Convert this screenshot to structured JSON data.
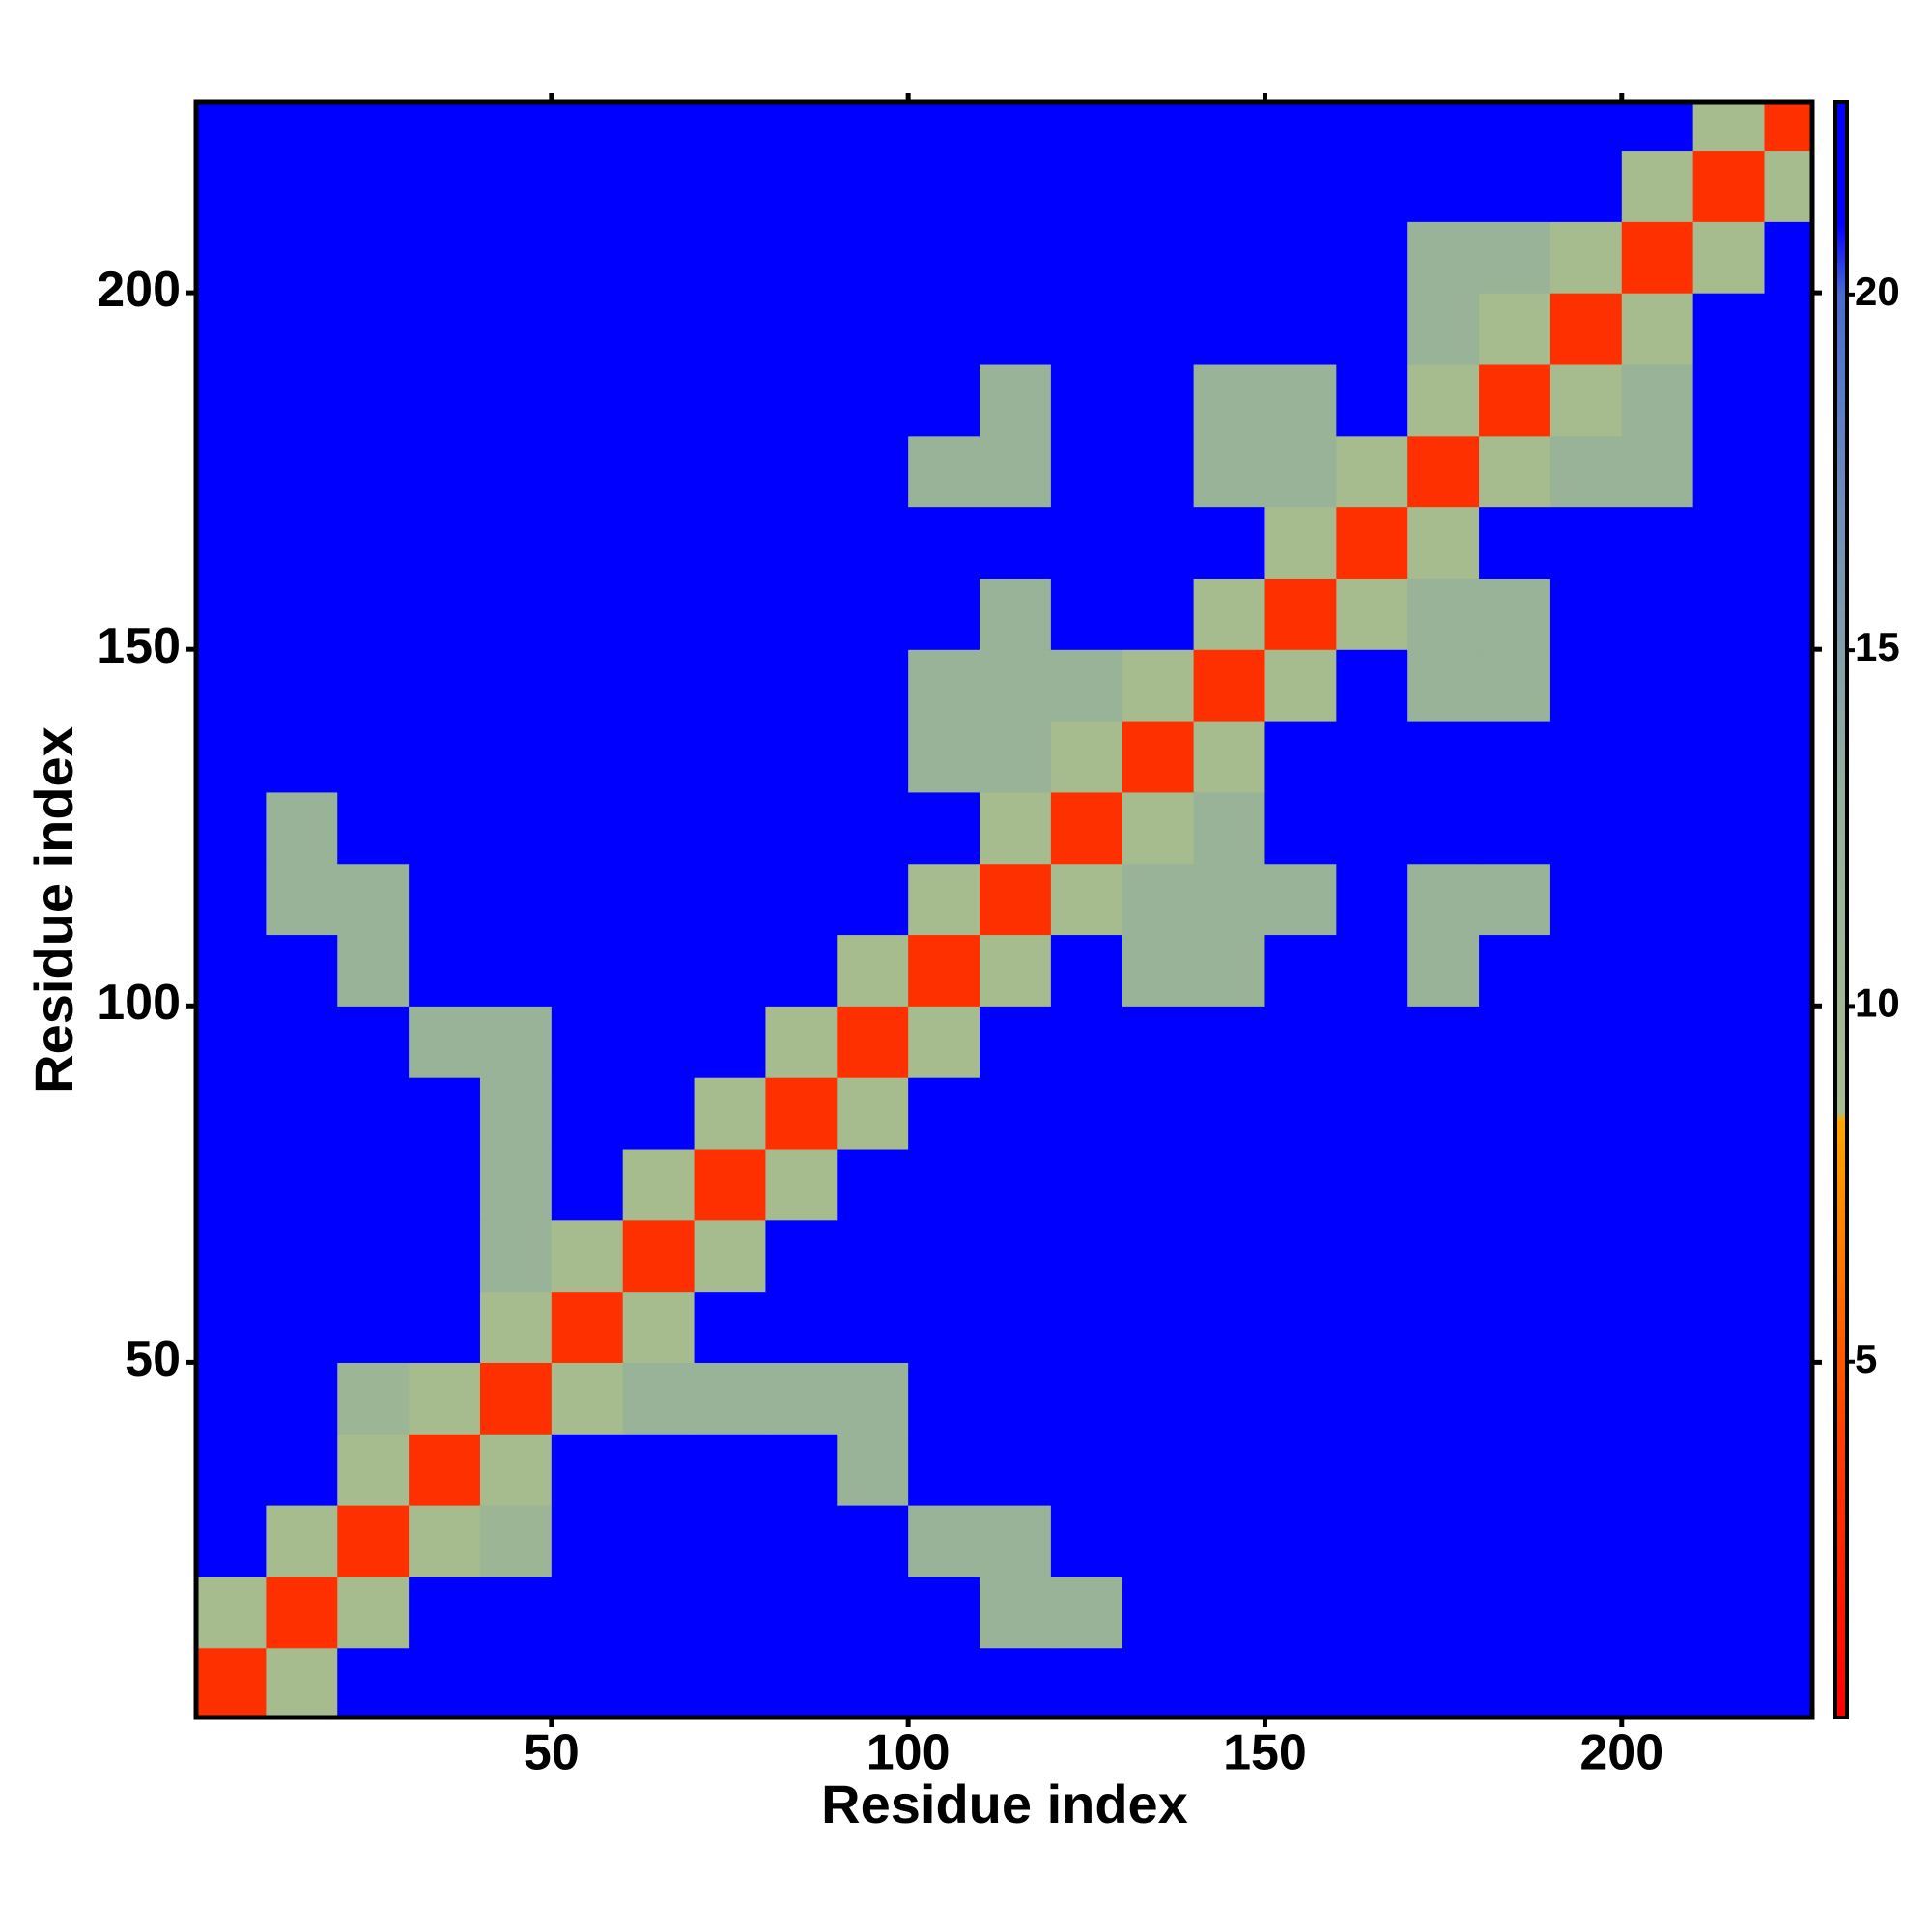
{
  "chart_data": {
    "type": "heatmap",
    "xlabel": "Residue index",
    "ylabel": "Residue index",
    "x": [
      5,
      15,
      25,
      35,
      45,
      55,
      65,
      75,
      85,
      95,
      105,
      115,
      125,
      135,
      145,
      155,
      165,
      175,
      185,
      195,
      205,
      215,
      225
    ],
    "y": [
      5,
      15,
      25,
      35,
      45,
      55,
      65,
      75,
      85,
      95,
      105,
      115,
      125,
      135,
      145,
      155,
      165,
      175,
      185,
      195,
      205,
      215,
      225
    ],
    "z": [
      [
        3,
        9,
        21,
        21,
        21,
        21,
        21,
        21,
        21,
        21,
        21,
        21,
        21,
        21,
        21,
        21,
        21,
        21,
        21,
        21,
        21,
        21,
        21
      ],
      [
        9,
        3,
        9,
        21,
        21,
        21,
        21,
        21,
        21,
        21,
        21,
        12,
        12,
        21,
        21,
        21,
        21,
        21,
        21,
        21,
        21,
        21,
        21
      ],
      [
        21,
        9,
        3,
        9,
        11,
        21,
        21,
        21,
        21,
        21,
        12,
        12,
        21,
        21,
        21,
        21,
        21,
        21,
        21,
        21,
        21,
        21,
        21
      ],
      [
        21,
        21,
        9,
        3,
        9,
        21,
        21,
        21,
        21,
        12,
        21,
        21,
        21,
        21,
        21,
        21,
        21,
        21,
        21,
        21,
        21,
        21,
        21
      ],
      [
        21,
        21,
        11,
        9,
        3,
        9,
        12,
        12,
        12,
        12,
        21,
        21,
        21,
        21,
        21,
        21,
        21,
        21,
        21,
        21,
        21,
        21,
        21
      ],
      [
        21,
        21,
        21,
        21,
        9,
        3,
        9,
        21,
        21,
        21,
        21,
        21,
        21,
        21,
        21,
        21,
        21,
        21,
        21,
        21,
        21,
        21,
        21
      ],
      [
        21,
        21,
        21,
        21,
        12,
        9,
        3,
        9,
        21,
        21,
        21,
        21,
        21,
        21,
        21,
        21,
        21,
        21,
        21,
        21,
        21,
        21,
        21
      ],
      [
        21,
        21,
        21,
        21,
        12,
        21,
        9,
        3,
        9,
        21,
        21,
        21,
        21,
        21,
        21,
        21,
        21,
        21,
        21,
        21,
        21,
        21,
        21
      ],
      [
        21,
        21,
        21,
        21,
        12,
        21,
        21,
        9,
        3,
        9,
        21,
        21,
        21,
        21,
        21,
        21,
        21,
        21,
        21,
        21,
        21,
        21,
        21
      ],
      [
        21,
        21,
        21,
        12,
        12,
        21,
        21,
        21,
        9,
        3,
        9,
        21,
        21,
        21,
        21,
        21,
        21,
        21,
        21,
        21,
        21,
        21,
        21
      ],
      [
        21,
        21,
        12,
        21,
        21,
        21,
        21,
        21,
        21,
        9,
        3,
        9,
        21,
        12,
        12,
        21,
        21,
        12,
        21,
        21,
        21,
        21,
        21
      ],
      [
        21,
        12,
        12,
        21,
        21,
        21,
        21,
        21,
        21,
        21,
        9,
        3,
        9,
        12,
        12,
        12,
        21,
        12,
        12,
        21,
        21,
        21,
        21
      ],
      [
        21,
        12,
        21,
        21,
        21,
        21,
        21,
        21,
        21,
        21,
        21,
        9,
        3,
        9,
        12,
        21,
        21,
        21,
        21,
        21,
        21,
        21,
        21
      ],
      [
        21,
        21,
        21,
        21,
        21,
        21,
        21,
        21,
        21,
        21,
        12,
        12,
        9,
        3,
        9,
        21,
        21,
        21,
        21,
        21,
        21,
        21,
        21
      ],
      [
        21,
        21,
        21,
        21,
        21,
        21,
        21,
        21,
        21,
        21,
        12,
        12,
        12,
        9,
        3,
        9,
        21,
        12,
        12,
        21,
        21,
        21,
        21
      ],
      [
        21,
        21,
        21,
        21,
        21,
        21,
        21,
        21,
        21,
        21,
        21,
        12,
        21,
        21,
        9,
        3,
        9,
        12,
        12,
        21,
        21,
        21,
        21
      ],
      [
        21,
        21,
        21,
        21,
        21,
        21,
        21,
        21,
        21,
        21,
        21,
        21,
        21,
        21,
        21,
        9,
        3,
        9,
        21,
        21,
        21,
        21,
        21
      ],
      [
        21,
        21,
        21,
        21,
        21,
        21,
        21,
        21,
        21,
        21,
        12,
        12,
        21,
        21,
        12,
        12,
        9,
        3,
        9,
        12,
        12,
        21,
        21
      ],
      [
        21,
        21,
        21,
        21,
        21,
        21,
        21,
        21,
        21,
        21,
        21,
        12,
        21,
        21,
        12,
        12,
        21,
        9,
        3,
        9,
        12,
        21,
        21
      ],
      [
        21,
        21,
        21,
        21,
        21,
        21,
        21,
        21,
        21,
        21,
        21,
        21,
        21,
        21,
        21,
        21,
        21,
        12,
        9,
        3,
        9,
        21,
        21
      ],
      [
        21,
        21,
        21,
        21,
        21,
        21,
        21,
        21,
        21,
        21,
        21,
        21,
        21,
        21,
        21,
        21,
        21,
        12,
        12,
        9,
        3,
        9,
        21
      ],
      [
        21,
        21,
        21,
        21,
        21,
        21,
        21,
        21,
        21,
        21,
        21,
        21,
        21,
        21,
        21,
        21,
        21,
        21,
        21,
        21,
        9,
        3,
        9
      ],
      [
        21,
        21,
        21,
        21,
        21,
        21,
        21,
        21,
        21,
        21,
        21,
        21,
        21,
        21,
        21,
        21,
        21,
        21,
        21,
        21,
        21,
        9,
        3
      ]
    ],
    "cell_size": 10,
    "xlim": [
      0.2,
      226.7
    ],
    "ylim": [
      0.2,
      226.7
    ],
    "xticks": [
      50,
      100,
      150,
      200
    ],
    "yticks": [
      50,
      100,
      150,
      200
    ],
    "clim": [
      0,
      22.7
    ],
    "cticks": [
      5,
      10,
      15,
      20
    ],
    "colorscale": [
      [
        0,
        "#ff0000"
      ],
      [
        4,
        "#ff4000"
      ],
      [
        8.4,
        "#ffa500"
      ],
      [
        8.5,
        "#a8bc8c"
      ],
      [
        13,
        "#93b09c"
      ],
      [
        17,
        "#6e8fb8"
      ],
      [
        20,
        "#4a6ad0"
      ],
      [
        21,
        "#0000ff"
      ],
      [
        22.7,
        "#0000ff"
      ]
    ]
  }
}
